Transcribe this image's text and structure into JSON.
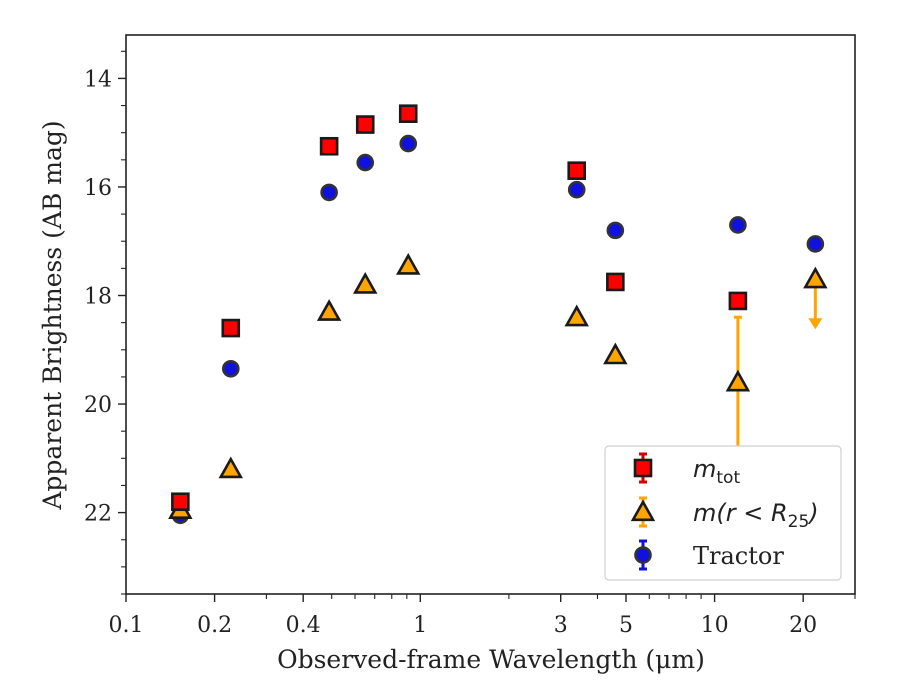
{
  "chart_data": {
    "type": "scatter",
    "title": "",
    "xlabel": "Observed-frame Wavelength (μm)",
    "ylabel": "Apparent Brightness (AB mag)",
    "xscale": "log",
    "xlim": [
      0.1,
      30
    ],
    "ylim": [
      23.5,
      13.2
    ],
    "y_inverted": true,
    "x_ticks": [
      0.1,
      0.2,
      0.4,
      1,
      3,
      5,
      10,
      20
    ],
    "x_tick_labels": [
      "0.1",
      "0.2",
      "0.4",
      "1",
      "3",
      "5",
      "10",
      "20"
    ],
    "y_ticks": [
      14,
      16,
      18,
      20,
      22
    ],
    "y_tick_labels": [
      "14",
      "16",
      "18",
      "20",
      "22"
    ],
    "legend_position": "lower-right",
    "series": [
      {
        "name": "m_tot",
        "label_base": "m",
        "label_sub": "tot",
        "marker": "square",
        "color": "#ff0000",
        "errcolor": "#d40000",
        "x": [
          0.153,
          0.227,
          0.49,
          0.65,
          0.91,
          3.4,
          4.6,
          12.0
        ],
        "y": [
          21.8,
          18.6,
          15.25,
          14.85,
          14.65,
          15.7,
          17.75,
          18.1
        ],
        "err_upper": [
          0,
          0,
          0,
          0,
          0,
          0,
          0,
          0
        ],
        "err_lower": [
          0,
          0,
          0,
          0,
          0,
          0,
          0,
          0
        ]
      },
      {
        "name": "m(r < R25)",
        "label_base": "m(r < R",
        "label_sub": "25",
        "label_end": ")",
        "marker": "triangle",
        "color": "#ffa500",
        "errcolor": "#ffa500",
        "x": [
          0.153,
          0.227,
          0.49,
          0.65,
          0.91,
          3.4,
          4.6,
          12.0,
          22.0
        ],
        "y": [
          21.95,
          21.2,
          18.3,
          17.8,
          17.45,
          18.4,
          19.1,
          19.6,
          17.7
        ],
        "err_upper": [
          0,
          0,
          0,
          0,
          0,
          0,
          0,
          1.2,
          0
        ],
        "err_lower": [
          0,
          0,
          0,
          0,
          0,
          0,
          0,
          1.2,
          0
        ],
        "upper_limit": [
          false,
          false,
          false,
          false,
          false,
          false,
          false,
          false,
          true
        ]
      },
      {
        "name": "Tractor",
        "marker": "circle",
        "color": "#1010e0",
        "errcolor": "#1010e0",
        "x": [
          0.153,
          0.227,
          0.49,
          0.65,
          0.91,
          3.4,
          4.6,
          12.0,
          22.0
        ],
        "y": [
          22.05,
          19.35,
          16.1,
          15.55,
          15.2,
          16.05,
          16.8,
          16.7,
          17.05
        ],
        "err_upper": [
          0,
          0,
          0,
          0,
          0,
          0,
          0,
          0,
          0
        ],
        "err_lower": [
          0,
          0,
          0,
          0,
          0,
          0,
          0,
          0,
          0
        ]
      }
    ]
  }
}
